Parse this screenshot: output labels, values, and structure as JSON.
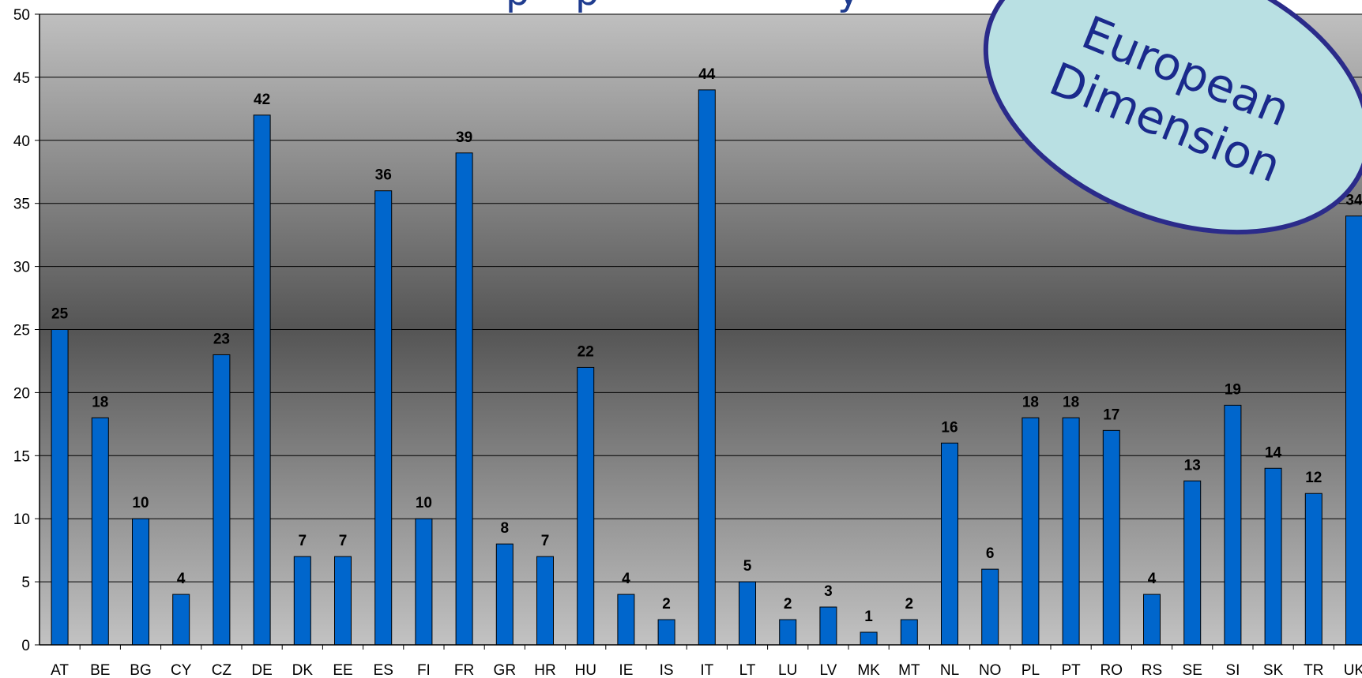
{
  "colors": {
    "bar_fill": "#0066cc",
    "bar_stroke": "#000000",
    "badge_fill": "#b9e0e3",
    "badge_stroke": "#2b2b8a",
    "badge_text": "#1a2a8c",
    "title_text": "#1f3c8f"
  },
  "badge": {
    "line1": "European",
    "line2": "Dimension"
  },
  "chart_data": {
    "type": "bar",
    "title": "",
    "xlabel": "",
    "ylabel": "",
    "ylim": [
      0,
      50
    ],
    "yticks": [
      0,
      5,
      10,
      15,
      20,
      25,
      30,
      35,
      40,
      45,
      50
    ],
    "grid": true,
    "legend": "none",
    "categories": [
      "AT",
      "BE",
      "BG",
      "CY",
      "CZ",
      "DE",
      "DK",
      "EE",
      "ES",
      "FI",
      "FR",
      "GR",
      "HR",
      "HU",
      "IE",
      "IS",
      "IT",
      "LT",
      "LU",
      "LV",
      "MK",
      "MT",
      "NL",
      "NO",
      "PL",
      "PT",
      "RO",
      "RS",
      "SE",
      "SI",
      "SK",
      "TR",
      "UK"
    ],
    "values": [
      25,
      18,
      10,
      4,
      23,
      42,
      7,
      7,
      36,
      10,
      39,
      8,
      7,
      22,
      4,
      2,
      44,
      5,
      2,
      3,
      1,
      2,
      16,
      6,
      18,
      18,
      17,
      4,
      13,
      19,
      14,
      12,
      34
    ]
  }
}
